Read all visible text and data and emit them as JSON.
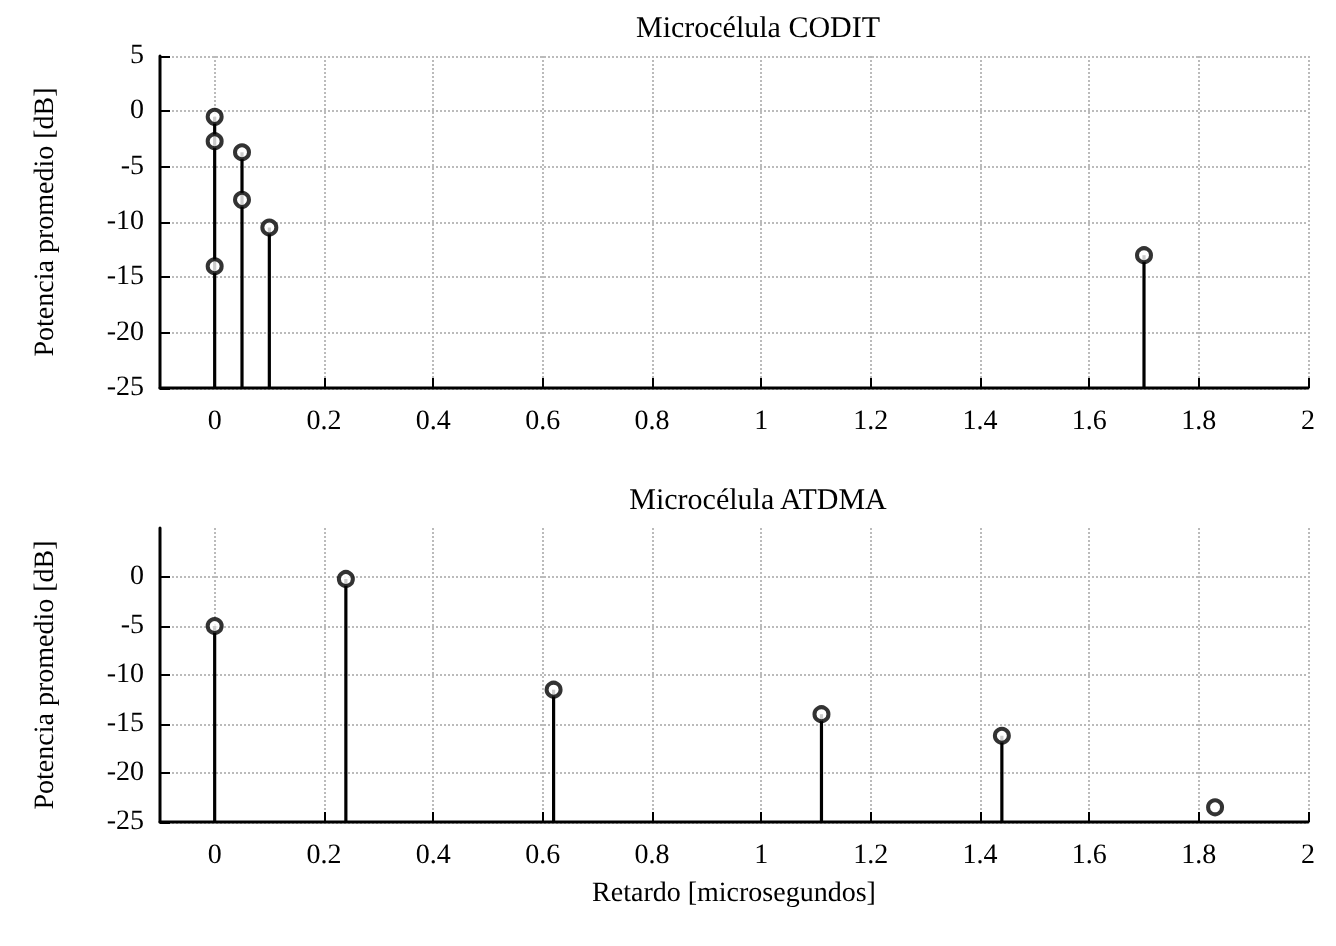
{
  "chart_data": [
    {
      "type": "scatter",
      "title": "Microcélula CODIT",
      "ylabel": "Potencia promedio [dB]",
      "x": [
        0,
        0,
        0,
        0.05,
        0.05,
        0.1,
        1.7
      ],
      "values": [
        -0.5,
        -2.7,
        -14,
        -3.7,
        -8,
        -10.5,
        -13
      ],
      "errors": [
        [
          -25,
          -0.5
        ],
        null,
        null,
        [
          -25,
          -3.7
        ],
        null,
        [
          -25,
          -10.5
        ],
        [
          -25,
          -13
        ]
      ],
      "color": "#000000",
      "marker": "circle",
      "xlim": [
        -0.1,
        2
      ],
      "xticks": [
        0,
        0.2,
        0.4,
        0.6,
        0.8,
        1,
        1.2,
        1.4,
        1.6,
        1.8,
        2
      ],
      "ylim": [
        -25,
        5
      ],
      "yticks": [
        -25,
        -20,
        -15,
        -10,
        -5,
        0,
        5
      ],
      "grid": true
    },
    {
      "type": "scatter",
      "title": "Microcélula ATDMA",
      "ylabel": "Potencia promedio [dB]",
      "xlabel": "Retardo [microsegundos]",
      "x": [
        0,
        0.24,
        0.62,
        1.11,
        1.44,
        1.83
      ],
      "values": [
        -5,
        -0.2,
        -11.5,
        -14,
        -16.2,
        -23.5
      ],
      "errors": [
        [
          -25,
          -5
        ],
        [
          -25,
          -0.2
        ],
        [
          -25,
          -11.5
        ],
        [
          -25,
          -14
        ],
        [
          -25,
          -16.2
        ],
        null
      ],
      "color": "#000000",
      "marker": "circle",
      "xlim": [
        -0.1,
        2
      ],
      "xticks": [
        0,
        0.2,
        0.4,
        0.6,
        0.8,
        1,
        1.2,
        1.4,
        1.6,
        1.8,
        2
      ],
      "ylim": [
        -25,
        5
      ],
      "yticks": [
        -25,
        -20,
        -15,
        -10,
        -5,
        0
      ],
      "grid": true
    }
  ]
}
